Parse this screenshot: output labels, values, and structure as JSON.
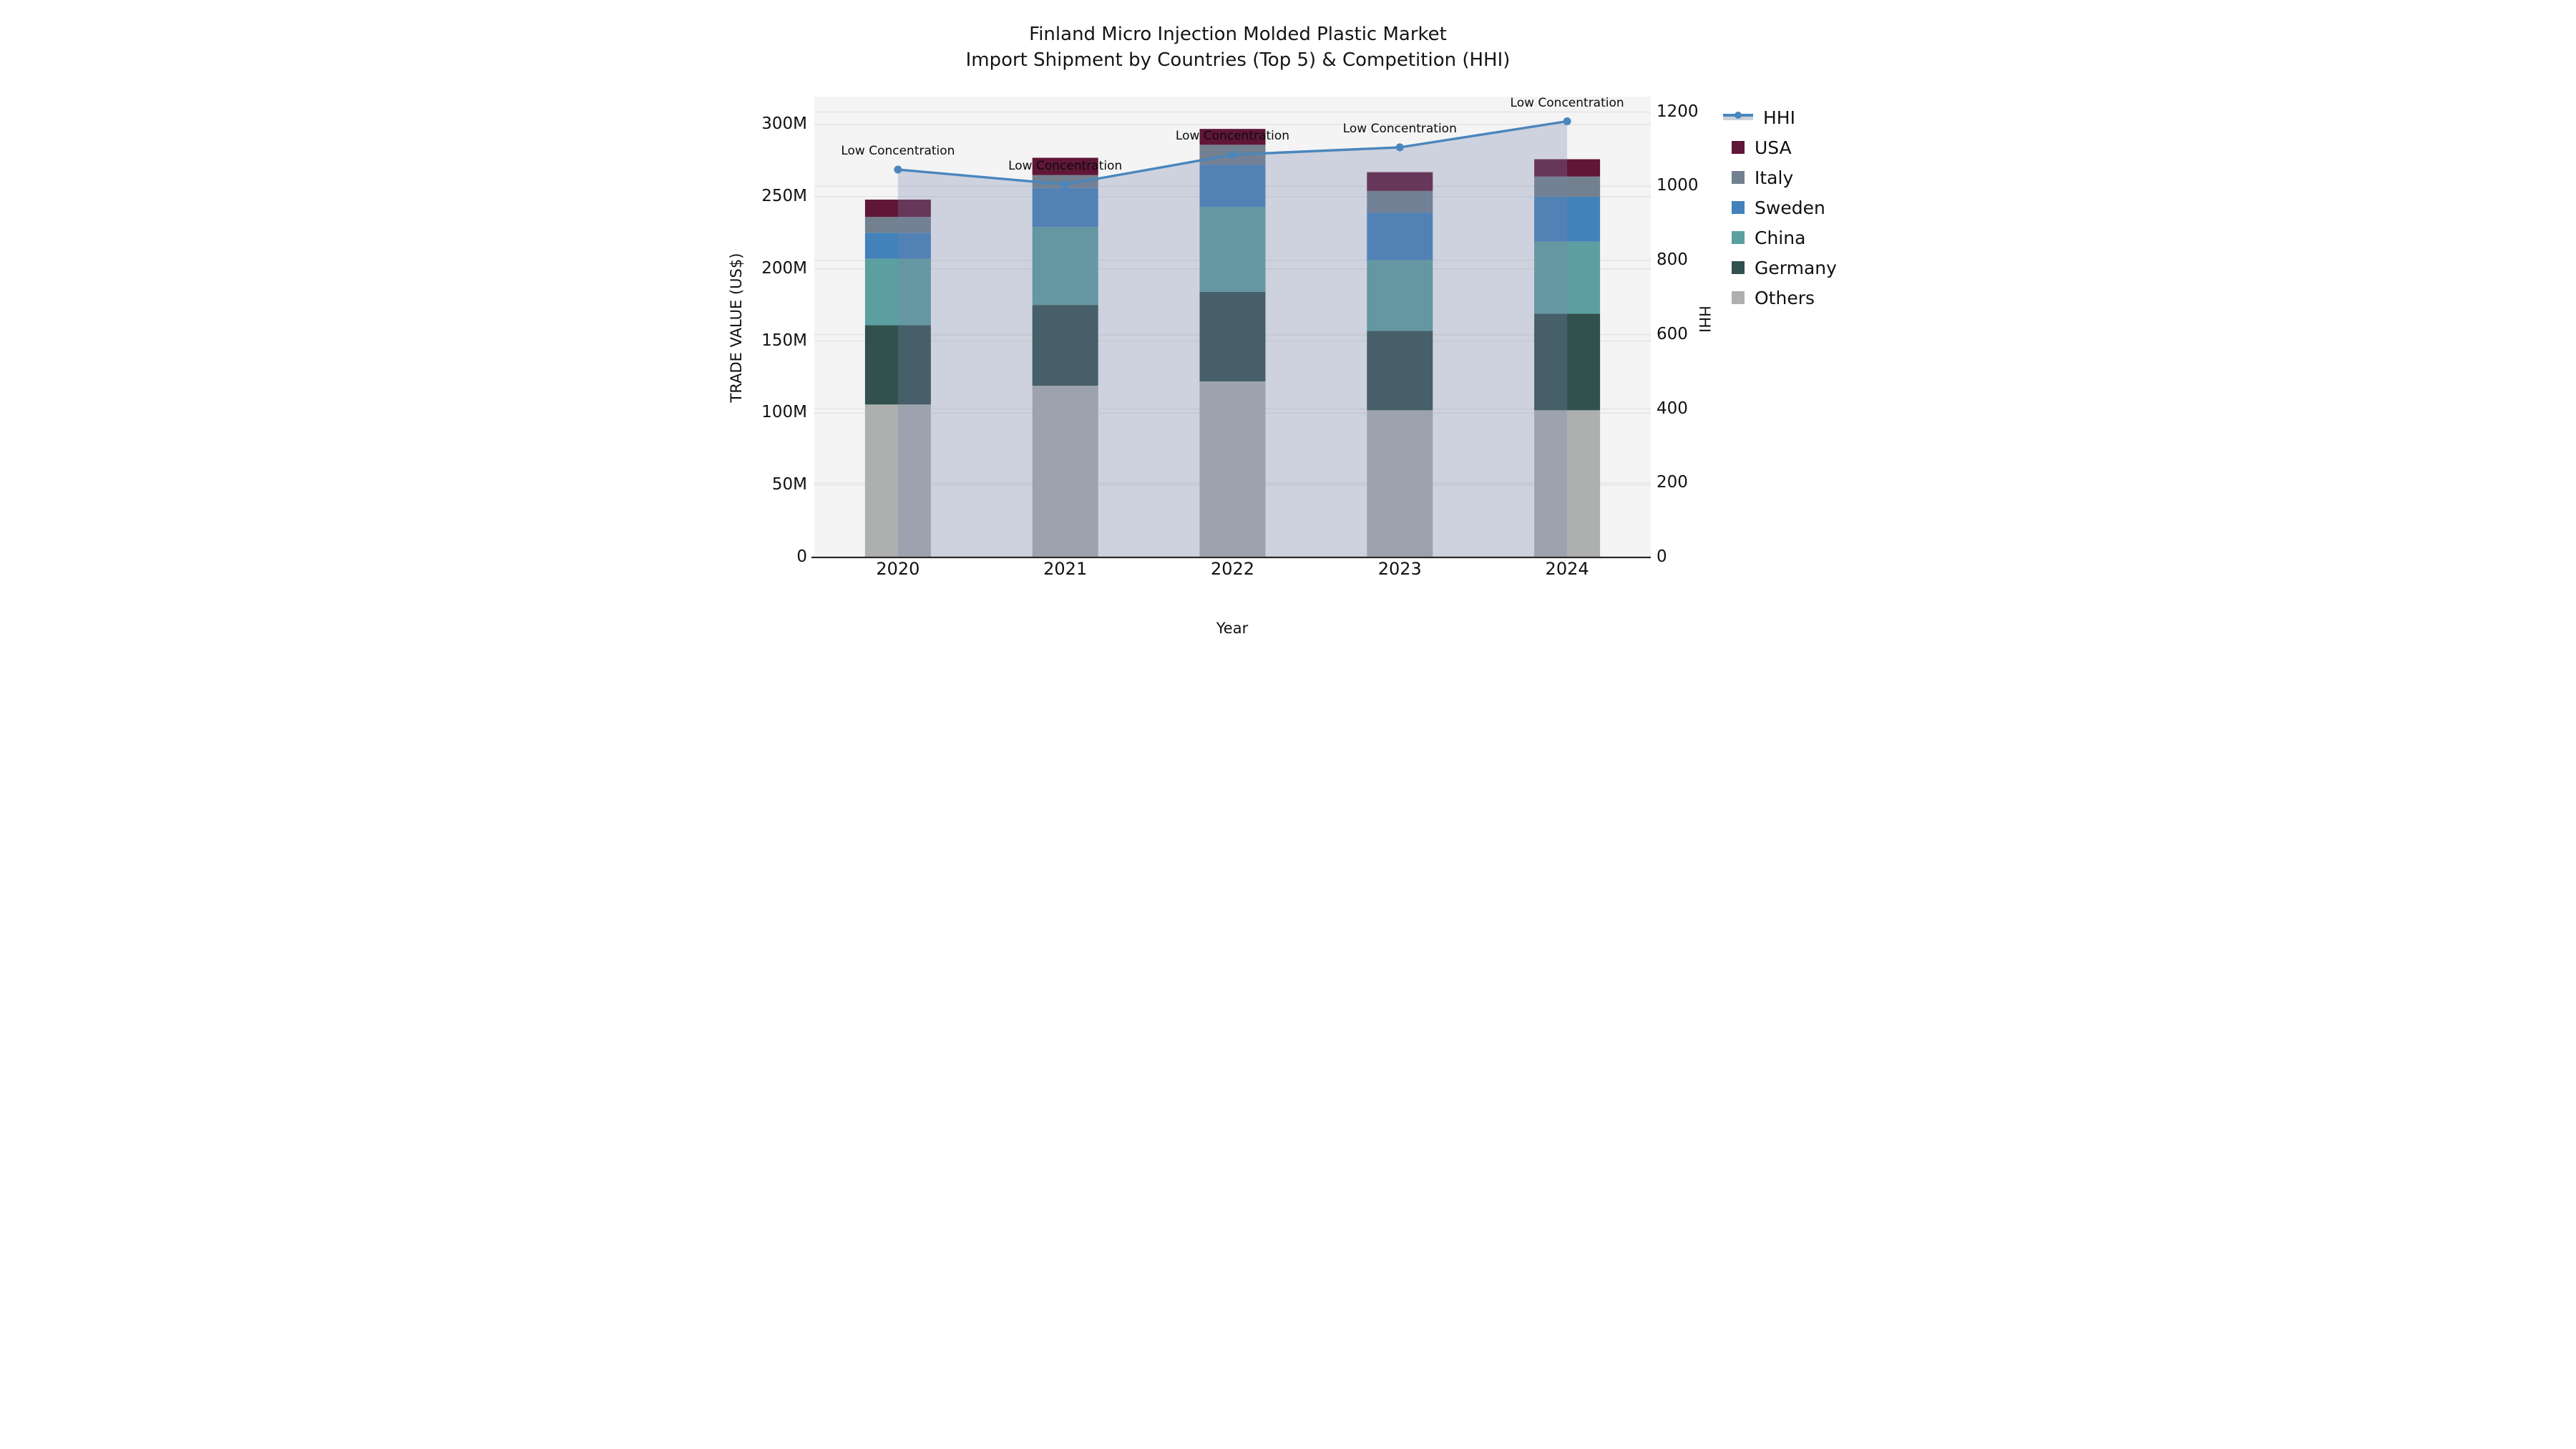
{
  "title": {
    "line1": "Finland Micro Injection Molded Plastic Market",
    "line2": "Import Shipment by Countries (Top 5) & Competition (HHI)"
  },
  "axes": {
    "x_label": "Year",
    "y_left_label": "TRADE VALUE (US$)",
    "y_right_label": "HHI",
    "y_left_ticks": [
      {
        "label": "0",
        "value": 0
      },
      {
        "label": "50M",
        "value": 50
      },
      {
        "label": "100M",
        "value": 100
      },
      {
        "label": "150M",
        "value": 150
      },
      {
        "label": "200M",
        "value": 200
      },
      {
        "label": "250M",
        "value": 250
      },
      {
        "label": "300M",
        "value": 300
      }
    ],
    "y_right_ticks": [
      {
        "label": "0",
        "value": 0
      },
      {
        "label": "200",
        "value": 200
      },
      {
        "label": "400",
        "value": 400
      },
      {
        "label": "600",
        "value": 600
      },
      {
        "label": "800",
        "value": 800
      },
      {
        "label": "1000",
        "value": 1000
      },
      {
        "label": "1200",
        "value": 1200
      }
    ]
  },
  "chart_data": {
    "type": "bar",
    "stacked": true,
    "title": "Finland Micro Injection Molded Plastic Market — Import Shipment by Countries (Top 5) & Competition (HHI)",
    "xlabel": "Year",
    "ylabel_left": "TRADE VALUE (US$)",
    "ylabel_right": "HHI",
    "categories": [
      "2020",
      "2021",
      "2022",
      "2023",
      "2024"
    ],
    "unit": "Million US$",
    "ylim_left": [
      0,
      319.4
    ],
    "ylim_right": [
      0,
      1241.6
    ],
    "grid": true,
    "legend_position": "right",
    "series": [
      {
        "name": "Others",
        "color": "#aeb0b0",
        "values": [
          106,
          119,
          122,
          102,
          102
        ]
      },
      {
        "name": "Germany",
        "color": "#31504e",
        "values": [
          55,
          56,
          62,
          55,
          67
        ]
      },
      {
        "name": "China",
        "color": "#5c9fa0",
        "values": [
          46,
          54,
          59,
          49,
          50
        ]
      },
      {
        "name": "Sweden",
        "color": "#4381ba",
        "values": [
          18,
          27,
          29,
          33,
          31
        ]
      },
      {
        "name": "Italy",
        "color": "#72808f",
        "values": [
          11,
          9,
          14,
          15,
          14
        ]
      },
      {
        "name": "USA",
        "color": "#601637",
        "values": [
          12,
          12,
          11,
          13,
          12
        ]
      }
    ],
    "totals": [
      248,
      277,
      297,
      267,
      276
    ],
    "line_series": {
      "name": "HHI",
      "axis": "right",
      "color": "#4a86bc",
      "area_fill": "rgba(118,134,169,0.30)",
      "values": [
        1045,
        1005,
        1085,
        1105,
        1175
      ]
    },
    "annotations": [
      {
        "text": "Low Concentration",
        "category": "2020"
      },
      {
        "text": "Low Concentration",
        "category": "2021"
      },
      {
        "text": "Low Concentration",
        "category": "2022"
      },
      {
        "text": "Low Concentration",
        "category": "2023"
      },
      {
        "text": "Low Concentration",
        "category": "2024"
      }
    ]
  },
  "legend": {
    "items": [
      {
        "label": "HHI",
        "type": "line",
        "color": "#4a86bc"
      },
      {
        "label": "USA",
        "type": "patch",
        "color": "#601637"
      },
      {
        "label": "Italy",
        "type": "patch",
        "color": "#72808f"
      },
      {
        "label": "Sweden",
        "type": "patch",
        "color": "#4381ba"
      },
      {
        "label": "China",
        "type": "patch",
        "color": "#5c9fa0"
      },
      {
        "label": "Germany",
        "type": "patch",
        "color": "#31504e"
      },
      {
        "label": "Others",
        "type": "patch",
        "color": "#aeb0b0"
      }
    ]
  },
  "style": {
    "plot_bg": "#f4f4f5",
    "grid_color": "#e4e4e6",
    "spine_color": "#2b2b2b",
    "accent_line": "#4a86bc"
  }
}
